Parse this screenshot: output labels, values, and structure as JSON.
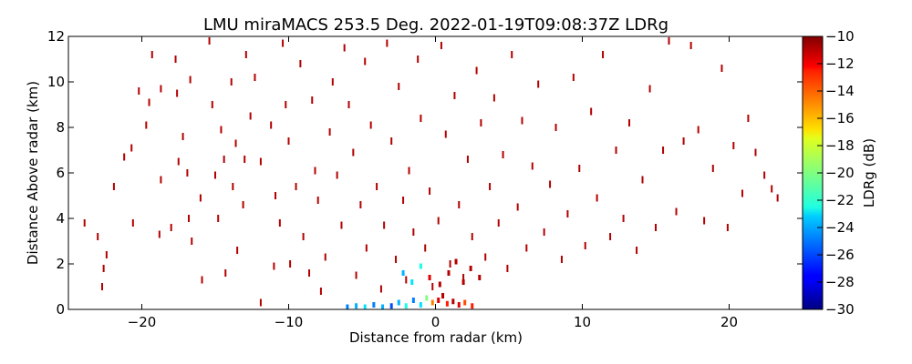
{
  "chart_data": {
    "type": "heatmap",
    "title": "LMU miraMACS 253.5 Deg. 2022-01-19T09:08:37Z  LDRg",
    "xlabel": "Distance from radar (km)",
    "ylabel": "Distance Above radar  (km)",
    "xlim": [
      -25,
      25
    ],
    "ylim": [
      0,
      12
    ],
    "x_ticks": [
      -20,
      -10,
      0,
      10,
      20
    ],
    "x_tick_labels": [
      "−20",
      "−10",
      "0",
      "10",
      "20"
    ],
    "y_ticks": [
      0,
      2,
      4,
      6,
      8,
      10,
      12
    ],
    "y_tick_labels": [
      "0",
      "2",
      "4",
      "6",
      "8",
      "10",
      "12"
    ],
    "colorbar": {
      "label": "LDRg (dB)",
      "range": [
        -30,
        -10
      ],
      "colormap": "jet",
      "ticks": [
        -10,
        -12,
        -14,
        -16,
        -18,
        -20,
        -22,
        -24,
        -26,
        -28,
        -30
      ],
      "tick_labels": [
        "−10",
        "−12",
        "−14",
        "−16",
        "−18",
        "−20",
        "−22",
        "−24",
        "−26",
        "−28",
        "−30"
      ]
    },
    "grid": false,
    "clutter_streaks": [
      [
        -23.9,
        3.8,
        -11
      ],
      [
        -23.0,
        3.2,
        -11
      ],
      [
        -22.6,
        1.8,
        -11
      ],
      [
        -22.4,
        2.4,
        -11
      ],
      [
        -22.7,
        1.0,
        -11
      ],
      [
        -21.9,
        5.4,
        -11
      ],
      [
        -21.2,
        6.7,
        -11
      ],
      [
        -20.7,
        7.1,
        -11
      ],
      [
        -20.2,
        9.6,
        -11
      ],
      [
        -20.6,
        3.8,
        -11
      ],
      [
        -19.7,
        8.1,
        -11
      ],
      [
        -19.5,
        9.1,
        -11
      ],
      [
        -19.3,
        11.2,
        -11
      ],
      [
        -18.7,
        9.7,
        -11
      ],
      [
        -18.7,
        5.7,
        -11
      ],
      [
        -18.8,
        3.3,
        -11
      ],
      [
        -18.0,
        3.6,
        -11
      ],
      [
        -17.7,
        11.0,
        -11
      ],
      [
        -17.6,
        9.5,
        -11
      ],
      [
        -17.5,
        6.5,
        -11
      ],
      [
        -17.2,
        7.6,
        -11
      ],
      [
        -16.9,
        6.0,
        -11
      ],
      [
        -16.8,
        4.0,
        -11
      ],
      [
        -16.6,
        3.0,
        -11
      ],
      [
        -16.7,
        10.1,
        -11
      ],
      [
        -16.0,
        4.9,
        -11
      ],
      [
        -15.9,
        1.3,
        -11
      ],
      [
        -15.4,
        11.8,
        -11
      ],
      [
        -15.2,
        9.0,
        -11
      ],
      [
        -15.0,
        5.9,
        -11
      ],
      [
        -14.8,
        4.0,
        -11
      ],
      [
        -14.6,
        7.9,
        -11
      ],
      [
        -14.4,
        6.6,
        -11
      ],
      [
        -14.3,
        1.6,
        -11
      ],
      [
        -13.9,
        10.0,
        -11
      ],
      [
        -13.8,
        5.4,
        -11
      ],
      [
        -13.6,
        7.3,
        -11
      ],
      [
        -13.5,
        2.6,
        -11
      ],
      [
        -13.1,
        4.6,
        -11
      ],
      [
        -13.0,
        6.6,
        -11
      ],
      [
        -12.9,
        11.2,
        -11
      ],
      [
        -12.6,
        8.5,
        -11
      ],
      [
        -12.3,
        10.2,
        -11
      ],
      [
        -11.9,
        6.5,
        -11
      ],
      [
        -11.9,
        0.3,
        -11
      ],
      [
        -11.2,
        8.1,
        -11
      ],
      [
        -11.0,
        1.9,
        -11
      ],
      [
        -10.9,
        5.0,
        -11
      ],
      [
        -10.6,
        3.8,
        -11
      ],
      [
        -10.4,
        11.7,
        -11
      ],
      [
        -10.2,
        9.0,
        -11
      ],
      [
        -10.0,
        7.4,
        -11
      ],
      [
        -9.9,
        2.0,
        -11
      ],
      [
        -9.5,
        5.4,
        -11
      ],
      [
        -9.2,
        10.8,
        -11
      ],
      [
        -9.0,
        3.2,
        -11
      ],
      [
        -8.6,
        1.6,
        -11
      ],
      [
        -8.4,
        9.2,
        -11
      ],
      [
        -8.2,
        6.1,
        -11
      ],
      [
        -8.0,
        4.8,
        -11
      ],
      [
        -7.8,
        0.8,
        -11
      ],
      [
        -7.5,
        2.3,
        -11
      ],
      [
        -7.2,
        7.8,
        -11
      ],
      [
        -7.0,
        10.0,
        -11
      ],
      [
        -6.7,
        5.9,
        -11
      ],
      [
        -6.4,
        3.7,
        -11
      ],
      [
        -6.2,
        11.5,
        -11
      ],
      [
        -5.9,
        9.0,
        -11
      ],
      [
        -5.6,
        6.9,
        -11
      ],
      [
        -5.4,
        1.5,
        -11
      ],
      [
        -5.1,
        4.6,
        -11
      ],
      [
        -4.8,
        10.9,
        -11
      ],
      [
        -4.7,
        2.7,
        -11
      ],
      [
        -4.4,
        8.1,
        -11
      ],
      [
        -4.0,
        5.4,
        -11
      ],
      [
        -3.7,
        0.9,
        -11
      ],
      [
        -3.5,
        3.7,
        -11
      ],
      [
        -3.3,
        11.7,
        -11
      ],
      [
        -3.0,
        7.4,
        -11
      ],
      [
        -2.7,
        2.2,
        -11
      ],
      [
        -2.5,
        9.8,
        -11
      ],
      [
        -2.2,
        4.8,
        -11
      ],
      [
        -2.0,
        1.3,
        -11
      ],
      [
        -1.8,
        6.1,
        -11
      ],
      [
        -1.5,
        3.4,
        -11
      ],
      [
        -1.2,
        11.0,
        -11
      ],
      [
        -1.0,
        8.4,
        -11
      ],
      [
        -0.7,
        2.7,
        -11
      ],
      [
        -0.4,
        5.2,
        -11
      ],
      [
        -0.2,
        1.0,
        -11
      ],
      [
        0.2,
        3.9,
        -11
      ],
      [
        0.4,
        11.6,
        -11
      ],
      [
        0.7,
        7.7,
        -11
      ],
      [
        1.0,
        2.0,
        -11
      ],
      [
        1.3,
        9.4,
        -11
      ],
      [
        1.6,
        4.6,
        -11
      ],
      [
        1.9,
        1.4,
        -11
      ],
      [
        2.2,
        6.6,
        -11
      ],
      [
        2.5,
        3.2,
        -11
      ],
      [
        2.8,
        10.5,
        -11
      ],
      [
        3.1,
        8.2,
        -11
      ],
      [
        3.4,
        2.3,
        -11
      ],
      [
        3.7,
        5.4,
        -11
      ],
      [
        4.0,
        9.3,
        -11
      ],
      [
        4.3,
        3.8,
        -11
      ],
      [
        4.6,
        6.8,
        -11
      ],
      [
        4.9,
        1.8,
        -11
      ],
      [
        5.2,
        11.2,
        -11
      ],
      [
        5.6,
        4.5,
        -11
      ],
      [
        5.9,
        8.3,
        -11
      ],
      [
        6.2,
        2.7,
        -11
      ],
      [
        6.6,
        6.3,
        -11
      ],
      [
        7.0,
        9.9,
        -11
      ],
      [
        7.4,
        3.4,
        -11
      ],
      [
        7.8,
        5.5,
        -11
      ],
      [
        8.2,
        8.0,
        -11
      ],
      [
        8.6,
        2.2,
        -11
      ],
      [
        9.0,
        4.2,
        -11
      ],
      [
        9.4,
        10.2,
        -11
      ],
      [
        9.8,
        6.2,
        -11
      ],
      [
        10.2,
        2.8,
        -11
      ],
      [
        10.6,
        8.7,
        -11
      ],
      [
        11.0,
        4.9,
        -11
      ],
      [
        11.4,
        11.2,
        -11
      ],
      [
        11.9,
        3.2,
        -11
      ],
      [
        12.3,
        7.0,
        -11
      ],
      [
        12.8,
        4.0,
        -11
      ],
      [
        13.2,
        8.2,
        -11
      ],
      [
        13.7,
        2.6,
        -11
      ],
      [
        14.1,
        5.7,
        -11
      ],
      [
        14.6,
        9.7,
        -11
      ],
      [
        15.0,
        3.6,
        -11
      ],
      [
        15.5,
        7.0,
        -11
      ],
      [
        15.9,
        11.8,
        -11
      ],
      [
        16.4,
        4.3,
        -11
      ],
      [
        16.9,
        7.4,
        -11
      ],
      [
        17.4,
        11.6,
        -11
      ],
      [
        17.9,
        7.9,
        -11
      ],
      [
        18.3,
        3.9,
        -11
      ],
      [
        18.9,
        6.2,
        -11
      ],
      [
        19.5,
        10.6,
        -11
      ],
      [
        19.9,
        3.6,
        -11
      ],
      [
        20.3,
        7.2,
        -11
      ],
      [
        20.9,
        5.1,
        -11
      ],
      [
        21.3,
        8.4,
        -11
      ],
      [
        21.8,
        6.9,
        -11
      ],
      [
        22.4,
        5.9,
        -11
      ],
      [
        22.9,
        5.3,
        -11
      ],
      [
        23.3,
        4.9,
        -11
      ]
    ],
    "near_ground_echo": [
      [
        -6.0,
        0.1,
        -25
      ],
      [
        -5.4,
        0.15,
        -24
      ],
      [
        -4.8,
        0.1,
        -23
      ],
      [
        -4.2,
        0.2,
        -25
      ],
      [
        -3.6,
        0.1,
        -24
      ],
      [
        -3.0,
        0.15,
        -26
      ],
      [
        -2.5,
        0.3,
        -24
      ],
      [
        -2.0,
        0.15,
        -22
      ],
      [
        -1.5,
        0.4,
        -25
      ],
      [
        -1.0,
        0.2,
        -23
      ],
      [
        -0.6,
        0.5,
        -20
      ],
      [
        -0.2,
        0.3,
        -15
      ],
      [
        0.2,
        0.4,
        -12
      ],
      [
        0.5,
        0.6,
        -11
      ],
      [
        0.8,
        0.25,
        -13
      ],
      [
        1.2,
        0.35,
        -11
      ],
      [
        1.6,
        0.2,
        -12
      ],
      [
        2.0,
        0.3,
        -14
      ],
      [
        2.5,
        0.15,
        -13
      ],
      [
        -2.2,
        1.6,
        -24
      ],
      [
        -1.6,
        1.2,
        -23
      ],
      [
        -1.0,
        1.9,
        -22
      ],
      [
        -0.4,
        1.4,
        -12
      ],
      [
        0.3,
        1.1,
        -11
      ],
      [
        0.9,
        1.6,
        -11
      ],
      [
        1.4,
        2.1,
        -11
      ],
      [
        1.9,
        1.2,
        -11
      ],
      [
        2.4,
        1.8,
        -11
      ],
      [
        3.0,
        1.4,
        -11
      ]
    ]
  }
}
